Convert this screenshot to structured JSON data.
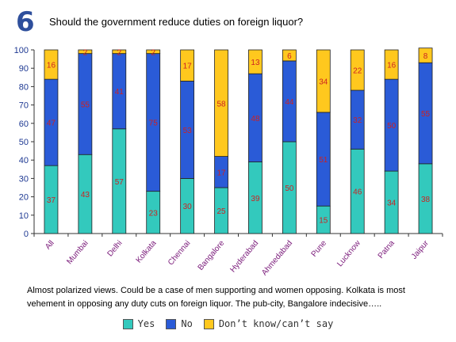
{
  "question": {
    "number": "6",
    "text": "Should the government reduce duties on foreign liquor?"
  },
  "caption": "Almost polarized views. Could be a case of men supporting and women opposing. Kolkata is most vehement in opposing any duty cuts on foreign liquor. The pub-city, Bangalore indecisive…..",
  "colors": {
    "yes": "#33c9bd",
    "no": "#2a5bd7",
    "dontknow": "#ffc81e",
    "label": "#cc2222",
    "axis": "#1f3a93"
  },
  "legend": [
    {
      "key": "yes",
      "label": "Yes"
    },
    {
      "key": "no",
      "label": "No"
    },
    {
      "key": "dontknow",
      "label": "Don’t know/can’t say"
    }
  ],
  "chart_data": {
    "type": "bar",
    "stacked": true,
    "categories": [
      "All",
      "Mumbai",
      "Delhi",
      "Kolkata",
      "Chennai",
      "Bangalore",
      "Hyderabad",
      "Ahmedabad",
      "Pune",
      "Lucknow",
      "Patna",
      "Jaipur"
    ],
    "series": [
      {
        "name": "Yes",
        "values": [
          37,
          43,
          57,
          23,
          30,
          25,
          39,
          50,
          15,
          46,
          34,
          38
        ]
      },
      {
        "name": "No",
        "values": [
          47,
          55,
          41,
          75,
          53,
          17,
          48,
          44,
          51,
          32,
          50,
          55
        ]
      },
      {
        "name": "Don’t know/can’t say",
        "values": [
          16,
          2,
          2,
          2,
          17,
          58,
          13,
          6,
          34,
          22,
          16,
          8
        ]
      }
    ],
    "ylim": [
      0,
      100
    ],
    "yticks": [
      0,
      10,
      20,
      30,
      40,
      50,
      60,
      70,
      80,
      90,
      100
    ],
    "grid": false
  }
}
